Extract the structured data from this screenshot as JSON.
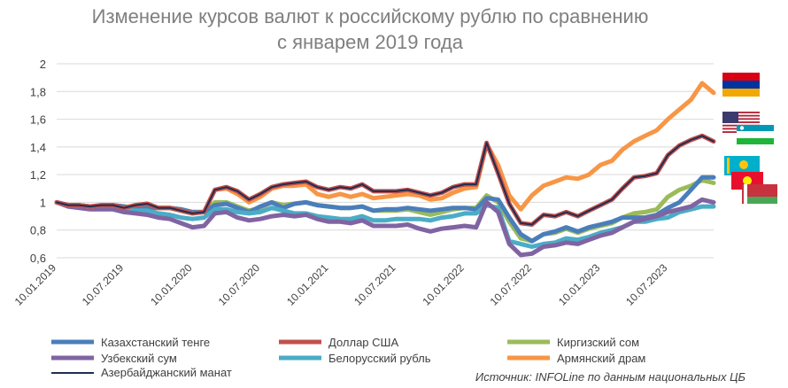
{
  "chart_data": {
    "type": "line",
    "title_lines": [
      "Изменение курсов валют к российскому рублю по сравнению",
      "с январем 2019 года"
    ],
    "xlabel": "",
    "ylabel": "",
    "ylim": [
      0.6,
      2.0
    ],
    "y_ticks": [
      "0,6",
      "0,8",
      "1",
      "1,2",
      "1,4",
      "1,6",
      "1,8",
      "2"
    ],
    "x_ticks": [
      "10.01.2019",
      "10.07.2019",
      "10.01.2020",
      "10.07.2020",
      "10.01.2021",
      "10.07.2021",
      "10.01.2022",
      "10.07.2022",
      "10.01.2023",
      "10.07.2023"
    ],
    "x_range": [
      "10.01.2019",
      "10.11.2023"
    ],
    "grid": "horizontal",
    "legend_position": "bottom",
    "x_dates": [
      "10.01.2019",
      "10.02.2019",
      "10.03.2019",
      "10.04.2019",
      "10.05.2019",
      "10.06.2019",
      "10.07.2019",
      "10.08.2019",
      "10.09.2019",
      "10.10.2019",
      "10.11.2019",
      "10.12.2019",
      "10.01.2020",
      "10.02.2020",
      "10.03.2020",
      "10.04.2020",
      "10.05.2020",
      "10.06.2020",
      "10.07.2020",
      "10.08.2020",
      "10.09.2020",
      "10.10.2020",
      "10.11.2020",
      "10.12.2020",
      "10.01.2021",
      "10.02.2021",
      "10.03.2021",
      "10.04.2021",
      "10.05.2021",
      "10.06.2021",
      "10.07.2021",
      "10.08.2021",
      "10.09.2021",
      "10.10.2021",
      "10.11.2021",
      "10.12.2021",
      "10.01.2022",
      "10.02.2022",
      "10.03.2022",
      "10.04.2022",
      "10.05.2022",
      "10.06.2022",
      "10.07.2022",
      "10.08.2022",
      "10.09.2022",
      "10.10.2022",
      "10.11.2022",
      "10.12.2022",
      "10.01.2023",
      "10.02.2023",
      "10.03.2023",
      "10.04.2023",
      "10.05.2023",
      "10.06.2023",
      "10.07.2023",
      "10.08.2023",
      "10.09.2023",
      "10.10.2023",
      "10.11.2023"
    ],
    "series": [
      {
        "name": "Казахстанский тенге",
        "color": "#4a7ebb",
        "values": [
          1.0,
          0.98,
          0.98,
          0.97,
          0.97,
          0.98,
          0.97,
          0.96,
          0.96,
          0.96,
          0.96,
          0.95,
          0.93,
          0.93,
          0.98,
          0.99,
          0.96,
          0.93,
          0.97,
          1.0,
          0.96,
          0.99,
          1.0,
          0.98,
          0.97,
          0.96,
          0.96,
          0.97,
          0.94,
          0.95,
          0.95,
          0.96,
          0.95,
          0.94,
          0.95,
          0.96,
          0.96,
          0.95,
          1.03,
          1.02,
          0.89,
          0.77,
          0.72,
          0.77,
          0.79,
          0.82,
          0.79,
          0.82,
          0.84,
          0.86,
          0.89,
          0.89,
          0.89,
          0.91,
          0.96,
          1.0,
          1.09,
          1.18,
          1.18
        ]
      },
      {
        "name": "Доллар США",
        "color": "#c0504d",
        "values": [
          1.0,
          0.98,
          0.98,
          0.97,
          0.98,
          0.98,
          0.96,
          0.98,
          0.99,
          0.96,
          0.96,
          0.94,
          0.92,
          0.93,
          1.09,
          1.11,
          1.08,
          1.02,
          1.06,
          1.11,
          1.13,
          1.14,
          1.15,
          1.11,
          1.09,
          1.11,
          1.1,
          1.13,
          1.08,
          1.08,
          1.08,
          1.09,
          1.07,
          1.05,
          1.07,
          1.11,
          1.13,
          1.13,
          1.43,
          1.21,
          0.99,
          0.85,
          0.84,
          0.91,
          0.9,
          0.93,
          0.9,
          0.94,
          0.98,
          1.02,
          1.1,
          1.18,
          1.19,
          1.21,
          1.34,
          1.41,
          1.45,
          1.48,
          1.44
        ]
      },
      {
        "name": "Киргизский сом",
        "color": "#9bbb59",
        "values": [
          1.0,
          0.98,
          0.98,
          0.97,
          0.97,
          0.98,
          0.97,
          0.96,
          0.96,
          0.96,
          0.96,
          0.95,
          0.93,
          0.93,
          1.0,
          1.0,
          0.97,
          0.94,
          0.96,
          1.0,
          0.98,
          0.99,
          1.0,
          0.98,
          0.97,
          0.96,
          0.96,
          0.97,
          0.94,
          0.94,
          0.94,
          0.95,
          0.93,
          0.91,
          0.93,
          0.95,
          0.96,
          0.96,
          1.05,
          1.0,
          0.86,
          0.74,
          0.72,
          0.77,
          0.78,
          0.81,
          0.78,
          0.81,
          0.83,
          0.85,
          0.89,
          0.92,
          0.93,
          0.95,
          1.04,
          1.09,
          1.12,
          1.16,
          1.14
        ]
      },
      {
        "name": "Узбекский сум",
        "color": "#8064a2",
        "values": [
          1.0,
          0.97,
          0.96,
          0.95,
          0.95,
          0.95,
          0.93,
          0.92,
          0.91,
          0.89,
          0.88,
          0.85,
          0.82,
          0.83,
          0.92,
          0.93,
          0.89,
          0.87,
          0.88,
          0.9,
          0.91,
          0.9,
          0.91,
          0.88,
          0.86,
          0.86,
          0.85,
          0.87,
          0.83,
          0.83,
          0.83,
          0.84,
          0.81,
          0.79,
          0.81,
          0.82,
          0.83,
          0.82,
          1.0,
          0.93,
          0.7,
          0.62,
          0.63,
          0.68,
          0.69,
          0.71,
          0.7,
          0.73,
          0.76,
          0.78,
          0.82,
          0.86,
          0.88,
          0.9,
          0.93,
          0.95,
          0.97,
          1.02,
          1.0
        ]
      },
      {
        "name": "Белорусский рубль",
        "color": "#4bacc6",
        "values": [
          1.0,
          0.98,
          0.97,
          0.97,
          0.97,
          0.97,
          0.95,
          0.94,
          0.94,
          0.92,
          0.91,
          0.89,
          0.88,
          0.89,
          0.95,
          0.95,
          0.93,
          0.92,
          0.93,
          0.96,
          0.94,
          0.92,
          0.92,
          0.9,
          0.89,
          0.88,
          0.88,
          0.9,
          0.87,
          0.87,
          0.88,
          0.88,
          0.88,
          0.87,
          0.89,
          0.9,
          0.92,
          0.92,
          0.98,
          0.96,
          0.72,
          0.7,
          0.68,
          0.7,
          0.71,
          0.74,
          0.73,
          0.75,
          0.78,
          0.8,
          0.82,
          0.86,
          0.86,
          0.88,
          0.89,
          0.93,
          0.95,
          0.97,
          0.97
        ]
      },
      {
        "name": "Армянский драм",
        "color": "#f79646",
        "values": [
          1.0,
          0.98,
          0.98,
          0.97,
          0.98,
          0.98,
          0.96,
          0.98,
          0.99,
          0.96,
          0.96,
          0.94,
          0.92,
          0.93,
          1.09,
          1.1,
          1.06,
          1.0,
          1.04,
          1.1,
          1.12,
          1.12,
          1.13,
          1.06,
          1.04,
          1.06,
          1.04,
          1.06,
          1.03,
          1.04,
          1.05,
          1.06,
          1.05,
          1.02,
          1.03,
          1.07,
          1.1,
          1.11,
          1.42,
          1.27,
          1.05,
          0.95,
          1.05,
          1.12,
          1.15,
          1.18,
          1.17,
          1.2,
          1.27,
          1.3,
          1.38,
          1.44,
          1.48,
          1.52,
          1.6,
          1.67,
          1.74,
          1.86,
          1.79
        ]
      },
      {
        "name": "Азербайджанский манат",
        "color": "#1f2d52",
        "values": [
          1.0,
          0.98,
          0.98,
          0.97,
          0.98,
          0.98,
          0.96,
          0.98,
          0.99,
          0.96,
          0.96,
          0.94,
          0.92,
          0.93,
          1.09,
          1.11,
          1.08,
          1.02,
          1.06,
          1.11,
          1.13,
          1.14,
          1.15,
          1.11,
          1.09,
          1.11,
          1.1,
          1.13,
          1.08,
          1.08,
          1.08,
          1.09,
          1.07,
          1.05,
          1.07,
          1.11,
          1.13,
          1.13,
          1.43,
          1.21,
          0.99,
          0.85,
          0.84,
          0.91,
          0.9,
          0.93,
          0.9,
          0.94,
          0.98,
          1.02,
          1.1,
          1.18,
          1.19,
          1.21,
          1.34,
          1.41,
          1.45,
          1.48,
          1.44
        ]
      }
    ],
    "source": "Источник: INFOLine по данным национальных ЦБ"
  },
  "flags": [
    {
      "name": "armenia",
      "stripes": [
        "#d90012",
        "#0033a0",
        "#f2a800"
      ]
    },
    {
      "name": "usa",
      "colors": [
        "#b22234",
        "#ffffff",
        "#3c3b6e"
      ]
    },
    {
      "name": "uzbekistan",
      "stripes": [
        "#0099b5",
        "#ffffff",
        "#1eb53a"
      ]
    },
    {
      "name": "kazakhstan",
      "colors": [
        "#00afca",
        "#fec50c"
      ]
    },
    {
      "name": "kyrgyzstan",
      "colors": [
        "#e8112d",
        "#ffef00"
      ]
    },
    {
      "name": "belarus",
      "colors": [
        "#c8313e",
        "#4aa657",
        "#ffffff"
      ]
    }
  ]
}
